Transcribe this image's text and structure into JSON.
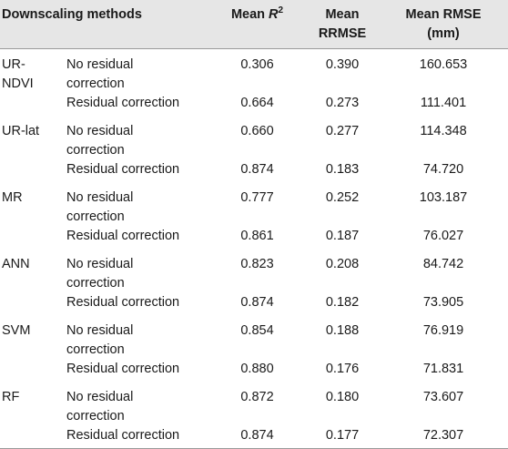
{
  "header": {
    "methods": "Downscaling methods",
    "r2_prefix": "Mean ",
    "r2_symbol": "R",
    "r2_sup": "2",
    "rrmse_line1": "Mean",
    "rrmse_line2": "RRMSE",
    "rmse_line1": "Mean RMSE",
    "rmse_line2": "(mm)"
  },
  "rows": [
    {
      "method_line1": "UR-",
      "method_line2": "NDVI",
      "no_corr_line1": "No residual",
      "no_corr_line2": "correction",
      "no_r2": "0.306",
      "no_rrmse": "0.390",
      "no_rmse": "160.653",
      "corr": "Residual correction",
      "c_r2": "0.664",
      "c_rrmse": "0.273",
      "c_rmse": "111.401"
    },
    {
      "method_line1": "UR-lat",
      "method_line2": "",
      "no_corr_line1": "No residual",
      "no_corr_line2": "correction",
      "no_r2": "0.660",
      "no_rrmse": "0.277",
      "no_rmse": "114.348",
      "corr": "Residual correction",
      "c_r2": "0.874",
      "c_rrmse": "0.183",
      "c_rmse": "74.720"
    },
    {
      "method_line1": "MR",
      "method_line2": "",
      "no_corr_line1": "No residual",
      "no_corr_line2": "correction",
      "no_r2": "0.777",
      "no_rrmse": "0.252",
      "no_rmse": "103.187",
      "corr": "Residual correction",
      "c_r2": "0.861",
      "c_rrmse": "0.187",
      "c_rmse": "76.027"
    },
    {
      "method_line1": "ANN",
      "method_line2": "",
      "no_corr_line1": "No residual",
      "no_corr_line2": "correction",
      "no_r2": "0.823",
      "no_rrmse": "0.208",
      "no_rmse": "84.742",
      "corr": "Residual correction",
      "c_r2": "0.874",
      "c_rrmse": "0.182",
      "c_rmse": "73.905"
    },
    {
      "method_line1": "SVM",
      "method_line2": "",
      "no_corr_line1": "No residual",
      "no_corr_line2": "correction",
      "no_r2": "0.854",
      "no_rrmse": "0.188",
      "no_rmse": "76.919",
      "corr": "Residual correction",
      "c_r2": "0.880",
      "c_rrmse": "0.176",
      "c_rmse": "71.831"
    },
    {
      "method_line1": "RF",
      "method_line2": "",
      "no_corr_line1": "No residual",
      "no_corr_line2": "correction",
      "no_r2": "0.872",
      "no_rrmse": "0.180",
      "no_rmse": "73.607",
      "corr": "Residual correction",
      "c_r2": "0.874",
      "c_rrmse": "0.177",
      "c_rmse": "72.307"
    }
  ]
}
